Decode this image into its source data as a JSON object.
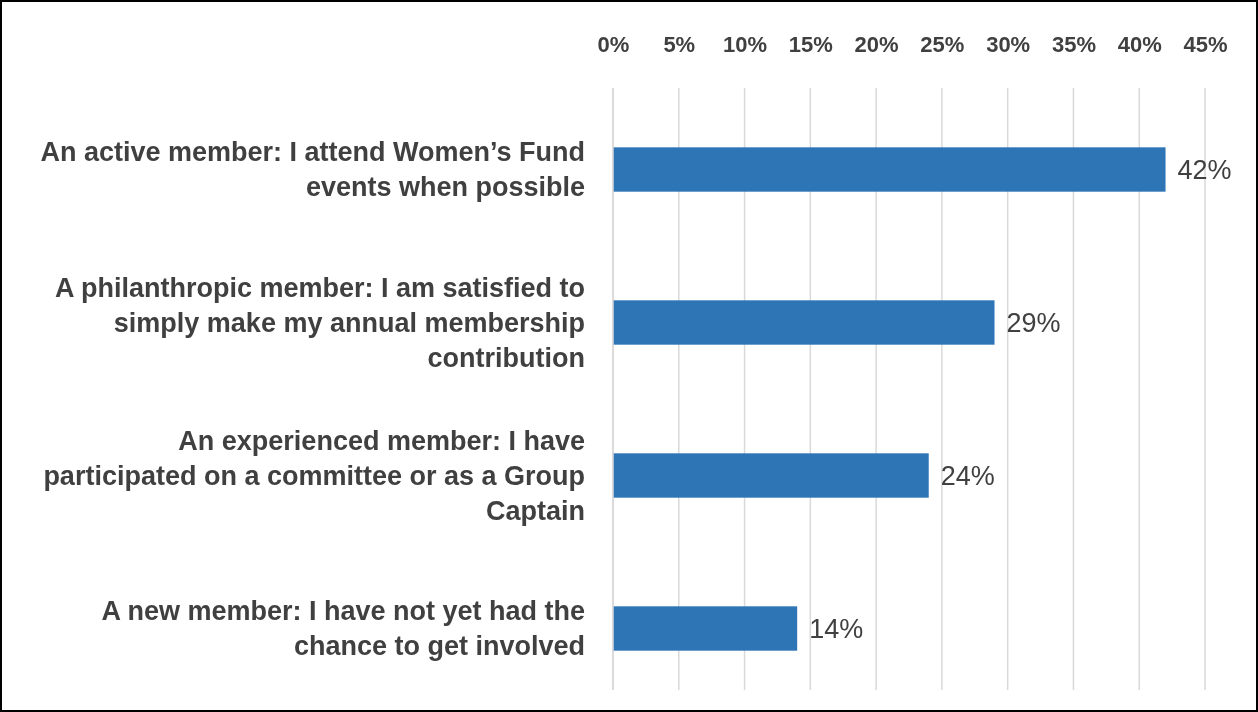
{
  "chart_data": {
    "type": "bar",
    "orientation": "horizontal",
    "categories": [
      "An active member: I attend Women’s Fund events when possible",
      "A philanthropic member: I am satisfied to simply make my annual membership contribution",
      "An experienced member: I have participated on a committee or as a Group Captain",
      "A new member: I have not yet had the chance to get involved"
    ],
    "values": [
      42,
      29,
      24,
      14
    ],
    "color": "#2e75b6",
    "value_labels": [
      "42%",
      "29%",
      "24%",
      "14%"
    ],
    "xlim": [
      0,
      45
    ],
    "xticks": [
      {
        "value": 0,
        "label": "0%"
      },
      {
        "value": 5,
        "label": "5%"
      },
      {
        "value": 10,
        "label": "10%"
      },
      {
        "value": 15,
        "label": "15%"
      },
      {
        "value": 20,
        "label": "20%"
      },
      {
        "value": 25,
        "label": "25%"
      },
      {
        "value": 30,
        "label": "30%"
      },
      {
        "value": 35,
        "label": "35%"
      },
      {
        "value": 40,
        "label": "40%"
      },
      {
        "value": 45,
        "label": "45%"
      }
    ],
    "grid": "x"
  }
}
